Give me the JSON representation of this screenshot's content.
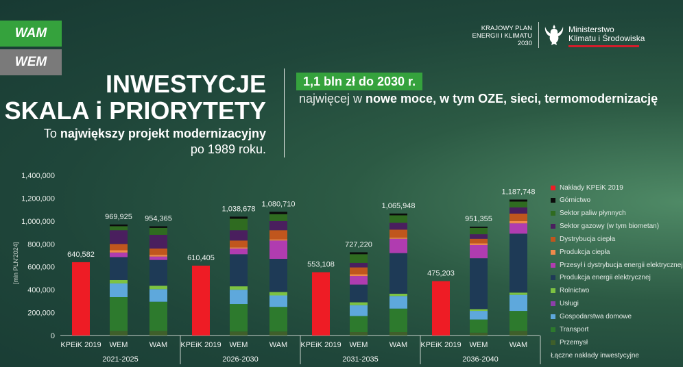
{
  "tabs": [
    {
      "id": "wam",
      "label": "WAM",
      "color": "#35a23d"
    },
    {
      "id": "wem",
      "label": "WEM",
      "color": "#7a7a7a"
    }
  ],
  "header": {
    "kpeik_lines": [
      "KRAJOWY PLAN",
      "ENERGII I KLIMATU",
      "2030"
    ],
    "ministry_lines": [
      "Ministerstwo",
      "Klimatu i Środowiska"
    ],
    "title_line1": "INWESTYCJE",
    "title_line2": "SKALA i PRIORYTETY",
    "subtitle_pre": "To ",
    "subtitle_bold": "największy projekt modernizacyjny",
    "subtitle_line2": "po 1989 roku.",
    "badge": "1,1 bln zł do 2030 r.",
    "badge_sub_pre": "najwięcej w ",
    "badge_sub_bold": "nowe moce, w tym OZE, sieci, termomodernizację"
  },
  "chart_data": {
    "type": "bar",
    "stacked": true,
    "ylabel": "[mln PLN'2024]",
    "ylim": [
      0,
      1400000
    ],
    "yticks": [
      "0",
      "200,000",
      "400,000",
      "600,000",
      "800,000",
      "1,000,000",
      "1,200,000",
      "1,400,000"
    ],
    "groups": [
      {
        "label": "2021-2025",
        "bars": [
          {
            "label": "KPEiK 2019",
            "total": "640,582",
            "values": {
              "kpeik": 640582
            }
          },
          {
            "label": "WEM",
            "total": "969,925",
            "values": {
              "przemysl": 40000,
              "transport": 295000,
              "gospodarstwa": 120000,
              "uslugi": 0,
              "rolnictwo": 30000,
              "produkcja_ee": 200000,
              "przesyl_ee": 40000,
              "produkcja_ciepla": 20000,
              "dystrybucja_ciepla": 55000,
              "sektor_gazowy": 120000,
              "sektor_paliw": 35000,
              "gornictwo": 14925
            }
          },
          {
            "label": "WAM",
            "total": "954,365",
            "values": {
              "przemysl": 40000,
              "transport": 255000,
              "gospodarstwa": 110000,
              "uslugi": 0,
              "rolnictwo": 30000,
              "produkcja_ee": 225000,
              "przesyl_ee": 30000,
              "produkcja_ciepla": 15000,
              "dystrybucja_ciepla": 55000,
              "sektor_gazowy": 120000,
              "sektor_paliw": 60000,
              "gornictwo": 14365
            }
          }
        ]
      },
      {
        "label": "2026-2030",
        "bars": [
          {
            "label": "KPEiK 2019",
            "total": "610,405",
            "values": {
              "kpeik": 610405
            }
          },
          {
            "label": "WEM",
            "total": "1,038,678",
            "values": {
              "przemysl": 35000,
              "transport": 240000,
              "gospodarstwa": 125000,
              "uslugi": 0,
              "rolnictwo": 30000,
              "produkcja_ee": 280000,
              "przesyl_ee": 50000,
              "produkcja_ciepla": 10000,
              "dystrybucja_ciepla": 60000,
              "sektor_gazowy": 90000,
              "sektor_paliw": 100000,
              "gornictwo": 18678
            }
          },
          {
            "label": "WAM",
            "total": "1,080,710",
            "values": {
              "przemysl": 35000,
              "transport": 215000,
              "gospodarstwa": 100000,
              "uslugi": 0,
              "rolnictwo": 30000,
              "produkcja_ee": 290000,
              "przesyl_ee": 160000,
              "produkcja_ciepla": 10000,
              "dystrybucja_ciepla": 80000,
              "sektor_gazowy": 80000,
              "sektor_paliw": 60000,
              "gornictwo": 20710
            }
          }
        ]
      },
      {
        "label": "2031-2035",
        "bars": [
          {
            "label": "KPEiK 2019",
            "total": "553,108",
            "values": {
              "kpeik": 553108
            }
          },
          {
            "label": "WEM",
            "total": "727,220",
            "values": {
              "przemysl": 30000,
              "transport": 140000,
              "gospodarstwa": 95000,
              "uslugi": 0,
              "rolnictwo": 25000,
              "produkcja_ee": 155000,
              "przesyl_ee": 75000,
              "produkcja_ciepla": 15000,
              "dystrybucja_ciepla": 60000,
              "sektor_gazowy": 40000,
              "sektor_paliw": 75000,
              "gornictwo": 17220
            }
          },
          {
            "label": "WAM",
            "total": "1,065,948",
            "values": {
              "przemysl": 30000,
              "transport": 205000,
              "gospodarstwa": 110000,
              "uslugi": 0,
              "rolnictwo": 20000,
              "produkcja_ee": 355000,
              "przesyl_ee": 125000,
              "produkcja_ciepla": 10000,
              "dystrybucja_ciepla": 70000,
              "sektor_gazowy": 60000,
              "sektor_paliw": 65000,
              "gornictwo": 15948
            }
          }
        ]
      },
      {
        "label": "2036-2040",
        "bars": [
          {
            "label": "KPEiK 2019",
            "total": "475,203",
            "values": {
              "kpeik": 475203
            }
          },
          {
            "label": "WEM",
            "total": "951,355",
            "values": {
              "przemysl": 25000,
              "transport": 115000,
              "gospodarstwa": 75000,
              "uslugi": 0,
              "rolnictwo": 15000,
              "produkcja_ee": 445000,
              "przesyl_ee": 115000,
              "produkcja_ciepla": 15000,
              "dystrybucja_ciepla": 40000,
              "sektor_gazowy": 40000,
              "sektor_paliw": 55000,
              "gornictwo": 11355
            }
          },
          {
            "label": "WAM",
            "total": "1,187,748",
            "values": {
              "przemysl": 40000,
              "transport": 175000,
              "gospodarstwa": 140000,
              "uslugi": 0,
              "rolnictwo": 20000,
              "produkcja_ee": 515000,
              "przesyl_ee": 90000,
              "produkcja_ciepla": 20000,
              "dystrybucja_ciepla": 65000,
              "sektor_gazowy": 55000,
              "sektor_paliw": 50000,
              "gornictwo": 17748
            }
          }
        ]
      }
    ],
    "stack_order": [
      "przemysl",
      "transport",
      "gospodarstwa",
      "uslugi",
      "rolnictwo",
      "produkcja_ee",
      "przesyl_ee",
      "produkcja_ciepla",
      "dystrybucja_ciepla",
      "sektor_gazowy",
      "sektor_paliw",
      "gornictwo",
      "kpeik"
    ],
    "legend": [
      {
        "key": "kpeik",
        "label": "Nakłady KPEiK 2019",
        "color": "#ee1c25"
      },
      {
        "key": "gornictwo",
        "label": "Górnictwo",
        "color": "#0b0b0b"
      },
      {
        "key": "sektor_paliw",
        "label": "Sektor paliw płynnych",
        "color": "#2f6b20"
      },
      {
        "key": "sektor_gazowy",
        "label": "Sektor gazowy (w tym biometan)",
        "color": "#4a1f5e"
      },
      {
        "key": "dystrybucja_ciepla",
        "label": "Dystrybucja ciepła",
        "color": "#c0561d"
      },
      {
        "key": "produkcja_ciepla",
        "label": "Produkcja ciepła",
        "color": "#f08a4b"
      },
      {
        "key": "przesyl_ee",
        "label": "Przesył i dystrybucja energii elektrycznej",
        "color": "#b03cb0"
      },
      {
        "key": "produkcja_ee",
        "label": "Produkcja energii elektrycznej",
        "color": "#1e3a56"
      },
      {
        "key": "rolnictwo",
        "label": "Rolnictwo",
        "color": "#7dc242"
      },
      {
        "key": "uslugi",
        "label": "Usługi",
        "color": "#8c3fa8"
      },
      {
        "key": "gospodarstwa",
        "label": "Gospodarstwa domowe",
        "color": "#5ea8dc"
      },
      {
        "key": "transport",
        "label": "Transport",
        "color": "#2d7a2d"
      },
      {
        "key": "przemysl",
        "label": "Przemysł",
        "color": "#3f5f2a"
      },
      {
        "key": "laczne",
        "label": "Łączne nakłady inwestycyjne",
        "color": ""
      }
    ]
  }
}
